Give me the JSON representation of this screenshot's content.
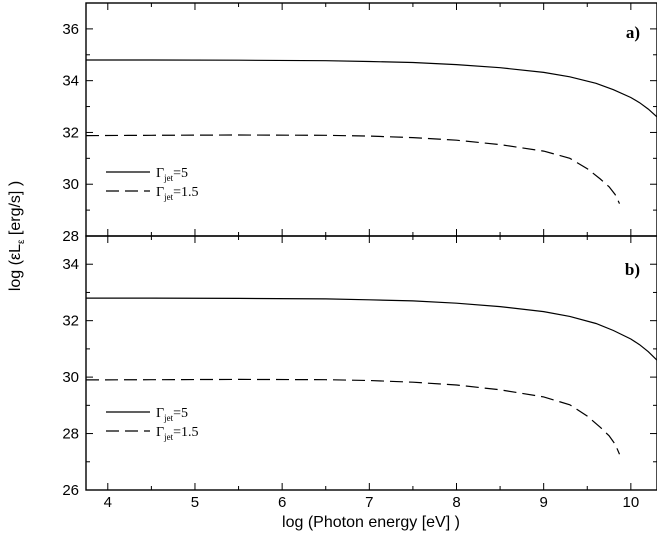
{
  "chart_data": {
    "type": "line",
    "xlabel": "log (Photon energy [eV] )",
    "ylabel": "log (εLε [erg/s] )",
    "ylabel_parts": {
      "pre": "log (εL",
      "sub": "ε",
      "post": " [erg/s] )"
    },
    "xlim": [
      3.75,
      10.3
    ],
    "xticks": [
      4,
      5,
      6,
      7,
      8,
      9,
      10
    ],
    "grid": false,
    "panels": [
      {
        "tag": "a)",
        "ylim": [
          28,
          37
        ],
        "yticks": [
          28,
          30,
          32,
          34,
          36
        ],
        "legend_position": "middle-left",
        "series": [
          {
            "name": "Γjet=5",
            "label_main": "Γ",
            "label_sub": "jet",
            "label_rest": "=5",
            "style": "solid",
            "x": [
              3.75,
              4.5,
              5.5,
              6.5,
              7.0,
              7.5,
              8.0,
              8.5,
              9.0,
              9.3,
              9.6,
              9.8,
              10.0,
              10.1,
              10.2,
              10.3
            ],
            "y": [
              34.8,
              34.8,
              34.79,
              34.77,
              34.74,
              34.7,
              34.62,
              34.5,
              34.32,
              34.15,
              33.9,
              33.65,
              33.35,
              33.15,
              32.9,
              32.6
            ]
          },
          {
            "name": "Γjet=1.5",
            "label_main": "Γ",
            "label_sub": "jet",
            "label_rest": "=1.5",
            "style": "dashed",
            "x": [
              3.75,
              4.5,
              5.5,
              6.5,
              7.0,
              7.5,
              8.0,
              8.5,
              9.0,
              9.3,
              9.5,
              9.65,
              9.75,
              9.82,
              9.87
            ],
            "y": [
              31.88,
              31.89,
              31.9,
              31.89,
              31.86,
              31.8,
              31.7,
              31.53,
              31.28,
              31.0,
              30.6,
              30.2,
              29.9,
              29.6,
              29.25
            ]
          }
        ]
      },
      {
        "tag": "b)",
        "ylim": [
          26,
          35
        ],
        "yticks": [
          26,
          28,
          30,
          32,
          34
        ],
        "legend_position": "bottom-left",
        "series": [
          {
            "name": "Γjet=5",
            "label_main": "Γ",
            "label_sub": "jet",
            "label_rest": "=5",
            "style": "solid",
            "x": [
              3.75,
              4.5,
              5.5,
              6.5,
              7.0,
              7.5,
              8.0,
              8.5,
              9.0,
              9.3,
              9.6,
              9.8,
              10.0,
              10.1,
              10.2,
              10.3
            ],
            "y": [
              32.8,
              32.8,
              32.79,
              32.77,
              32.74,
              32.7,
              32.62,
              32.5,
              32.32,
              32.15,
              31.9,
              31.65,
              31.35,
              31.15,
              30.9,
              30.6
            ]
          },
          {
            "name": "Γjet=1.5",
            "label_main": "Γ",
            "label_sub": "jet",
            "label_rest": "=1.5",
            "style": "dashed",
            "x": [
              3.75,
              4.5,
              5.5,
              6.5,
              7.0,
              7.5,
              8.0,
              8.5,
              9.0,
              9.3,
              9.5,
              9.65,
              9.75,
              9.82,
              9.87
            ],
            "y": [
              29.9,
              29.91,
              29.92,
              29.91,
              29.88,
              29.82,
              29.72,
              29.55,
              29.3,
              29.02,
              28.62,
              28.22,
              27.92,
              27.62,
              27.27
            ]
          }
        ]
      }
    ]
  }
}
